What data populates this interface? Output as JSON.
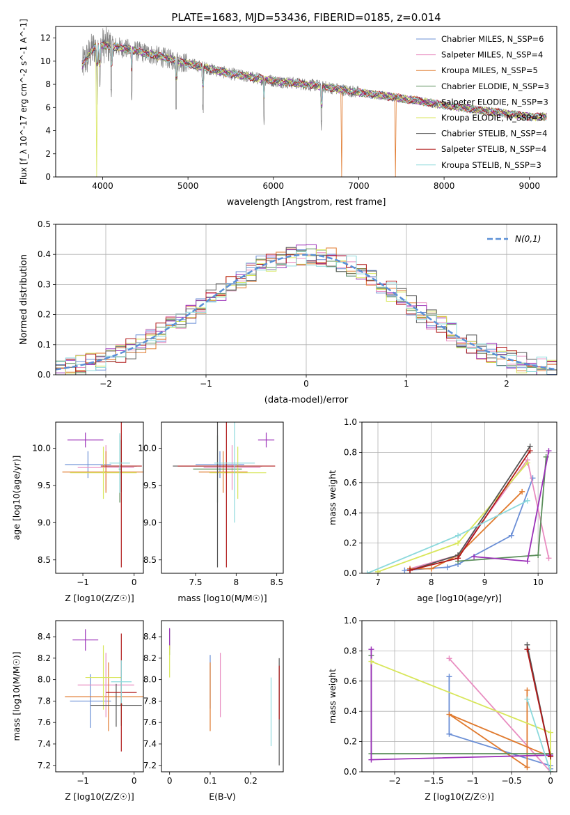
{
  "title": "PLATE=1683, MJD=53436, FIBERID=0185, z=0.014",
  "colors": [
    "#6b8fd6",
    "#e88cc0",
    "#e07a2e",
    "#5b8f5b",
    "#9b30b8",
    "#d8e65a",
    "#555555",
    "#b01818",
    "#8cd9dc"
  ],
  "chart_data": [
    {
      "id": "spectrum",
      "type": "line",
      "xlabel": "wavelength [Angstrom, rest frame]",
      "ylabel": "Flux [f_λ 10^-17 erg cm^-2 s^-1 A^-1]",
      "xlim": [
        3450,
        9320
      ],
      "ylim": [
        0,
        13
      ],
      "xticks": [
        4000,
        5000,
        6000,
        7000,
        8000,
        9000
      ],
      "yticks": [
        0,
        2,
        4,
        6,
        8,
        10,
        12
      ],
      "data_color": "#808080",
      "continuum": [
        [
          3760,
          9.6
        ],
        [
          3900,
          11.2
        ],
        [
          4000,
          11.4
        ],
        [
          4200,
          11.2
        ],
        [
          4500,
          10.7
        ],
        [
          5000,
          9.8
        ],
        [
          5500,
          8.9
        ],
        [
          6000,
          8.3
        ],
        [
          6500,
          7.9
        ],
        [
          7000,
          7.3
        ],
        [
          7500,
          6.8
        ],
        [
          8000,
          6.2
        ],
        [
          8500,
          5.7
        ],
        [
          9000,
          5.2
        ]
      ],
      "legend": [
        {
          "label": "Chabrier MILES, N_SSP=6",
          "color": "#6b8fd6"
        },
        {
          "label": "Salpeter MILES, N_SSP=4",
          "color": "#e88cc0"
        },
        {
          "label": "Kroupa MILES, N_SSP=5",
          "color": "#e07a2e"
        },
        {
          "label": "Chabrier ELODIE, N_SSP=3",
          "color": "#5b8f5b"
        },
        {
          "label": "Salpeter ELODIE, N_SSP=3",
          "color": "#9b30b8"
        },
        {
          "label": "Kroupa ELODIE, N_SSP=3",
          "color": "#d8e65a"
        },
        {
          "label": "Chabrier STELIB, N_SSP=4",
          "color": "#555555"
        },
        {
          "label": "Salpeter STELIB, N_SSP=4",
          "color": "#b01818"
        },
        {
          "label": "Kroupa STELIB, N_SSP=3",
          "color": "#8cd9dc"
        }
      ]
    },
    {
      "id": "residuals",
      "type": "line",
      "xlabel": "(data-model)/error",
      "ylabel": "Normed distribution",
      "xlim": [
        -2.5,
        2.5
      ],
      "ylim": [
        0,
        0.5
      ],
      "xticks": [
        -2,
        -1,
        0,
        1,
        2
      ],
      "yticks": [
        0,
        0.1,
        0.2,
        0.3,
        0.4,
        0.5
      ],
      "bin_width": 0.1,
      "legend": [
        {
          "label": "N(0,1)",
          "color": "#5a8fd6"
        }
      ]
    },
    {
      "id": "age_vs_Z",
      "type": "scatter",
      "xlabel": "Z [log10(Z/Z☉)]",
      "ylabel": "age [log10(age/yr)]",
      "xlim": [
        -1.53,
        0.18
      ],
      "ylim": [
        8.32,
        10.35
      ],
      "xticks": [
        -1,
        0
      ],
      "yticks": [
        8.5,
        9.0,
        9.5,
        10.0
      ],
      "points": [
        {
          "x": -0.9,
          "y": 9.78,
          "xerr": 0.45,
          "yerr": 0.18,
          "color": "#6b8fd6"
        },
        {
          "x": -0.55,
          "y": 9.74,
          "xerr": 0.55,
          "yerr": 0.3,
          "color": "#e88cc0"
        },
        {
          "x": -0.55,
          "y": 9.68,
          "xerr": 0.85,
          "yerr": 0.28,
          "color": "#e07a2e"
        },
        {
          "x": -0.28,
          "y": 9.72,
          "xerr": 0.02,
          "yerr": 0.45,
          "color": "#5b8f5b"
        },
        {
          "x": -0.95,
          "y": 10.11,
          "xerr": 0.35,
          "yerr": 0.1,
          "color": "#9b30b8"
        },
        {
          "x": -0.6,
          "y": 9.67,
          "xerr": 0.65,
          "yerr": 0.35,
          "color": "#d8e65a"
        },
        {
          "x": -0.25,
          "y": 9.76,
          "xerr": 0.3,
          "yerr": 0.35,
          "color": "#555555"
        },
        {
          "x": -0.25,
          "y": 9.76,
          "xerr": 0.4,
          "yerr": 1.36,
          "color": "#b01818"
        },
        {
          "x": -0.28,
          "y": 9.8,
          "xerr": 0.2,
          "yerr": 0.4,
          "color": "#8cd9dc"
        }
      ]
    },
    {
      "id": "age_vs_mass",
      "type": "scatter",
      "xlabel": "mass [log10(M/M☉)]",
      "ylabel": "",
      "xlim": [
        7.08,
        8.58
      ],
      "ylim": [
        8.32,
        10.35
      ],
      "xticks": [
        7.5,
        8.0,
        8.5
      ],
      "yticks": [
        8.5,
        9.0,
        9.5,
        10.0
      ],
      "points": [
        {
          "x": 7.8,
          "y": 9.78,
          "xerr": 0.3,
          "yerr": 0.18,
          "color": "#6b8fd6"
        },
        {
          "x": 7.95,
          "y": 9.74,
          "xerr": 0.35,
          "yerr": 0.3,
          "color": "#e88cc0"
        },
        {
          "x": 7.84,
          "y": 9.68,
          "xerr": 0.3,
          "yerr": 0.28,
          "color": "#e07a2e"
        },
        {
          "x": 7.77,
          "y": 9.72,
          "xerr": 0.3,
          "yerr": 0.45,
          "color": "#5b8f5b"
        },
        {
          "x": 8.37,
          "y": 10.11,
          "xerr": 0.1,
          "yerr": 0.1,
          "color": "#9b30b8"
        },
        {
          "x": 8.02,
          "y": 9.67,
          "xerr": 0.35,
          "yerr": 0.35,
          "color": "#d8e65a"
        },
        {
          "x": 7.77,
          "y": 9.76,
          "xerr": 0.55,
          "yerr": 1.36,
          "color": "#555555"
        },
        {
          "x": 7.88,
          "y": 9.76,
          "xerr": 0.6,
          "yerr": 1.36,
          "color": "#b01818"
        },
        {
          "x": 7.98,
          "y": 9.8,
          "xerr": 0.25,
          "yerr": 0.8,
          "color": "#8cd9dc"
        }
      ]
    },
    {
      "id": "mass_weight_vs_age",
      "type": "line",
      "xlabel": "age [log10(age/yr)]",
      "ylabel": "mass weight",
      "xlim": [
        6.7,
        10.35
      ],
      "ylim": [
        0,
        1.0
      ],
      "xticks": [
        7,
        8,
        9,
        10
      ],
      "yticks": [
        0,
        0.2,
        0.4,
        0.6,
        0.8,
        1.0
      ],
      "series": [
        {
          "color": "#6b8fd6",
          "x": [
            7.5,
            8.3,
            8.5,
            9.5,
            9.9
          ],
          "y": [
            0.02,
            0.04,
            0.06,
            0.25,
            0.63
          ]
        },
        {
          "color": "#e88cc0",
          "x": [
            7.6,
            8.5,
            9.8,
            10.2
          ],
          "y": [
            0.03,
            0.12,
            0.75,
            0.1
          ]
        },
        {
          "color": "#e07a2e",
          "x": [
            7.6,
            8.0,
            8.5,
            9.7
          ],
          "y": [
            0.03,
            0.03,
            0.12,
            0.54
          ]
        },
        {
          "color": "#5b8f5b",
          "x": [
            8.5,
            10.0,
            10.15
          ],
          "y": [
            0.08,
            0.12,
            0.77
          ]
        },
        {
          "color": "#9b30b8",
          "x": [
            8.8,
            9.8,
            10.2
          ],
          "y": [
            0.11,
            0.08,
            0.81
          ]
        },
        {
          "color": "#d8e65a",
          "x": [
            7.0,
            8.5,
            9.8
          ],
          "y": [
            0.01,
            0.2,
            0.73
          ]
        },
        {
          "color": "#555555",
          "x": [
            7.6,
            8.5,
            9.85
          ],
          "y": [
            0.02,
            0.12,
            0.84
          ]
        },
        {
          "color": "#b01818",
          "x": [
            7.6,
            8.5,
            9.85
          ],
          "y": [
            0.02,
            0.1,
            0.81
          ]
        },
        {
          "color": "#8cd9dc",
          "x": [
            6.8,
            8.5,
            9.8
          ],
          "y": [
            0.0,
            0.25,
            0.48
          ]
        }
      ]
    },
    {
      "id": "mass_vs_Z",
      "type": "scatter",
      "xlabel": "Z [log10(Z/Z☉)]",
      "ylabel": "mass [log10(M/M☉)]",
      "xlim": [
        -1.53,
        0.18
      ],
      "ylim": [
        7.14,
        8.55
      ],
      "xticks": [
        -1,
        0
      ],
      "yticks": [
        7.2,
        7.4,
        7.6,
        7.8,
        8.0,
        8.2,
        8.4
      ],
      "points": [
        {
          "x": -0.85,
          "y": 7.8,
          "xerr": 0.4,
          "yerr": 0.25,
          "color": "#6b8fd6"
        },
        {
          "x": -0.55,
          "y": 7.95,
          "xerr": 0.55,
          "yerr": 0.3,
          "color": "#e88cc0"
        },
        {
          "x": -0.5,
          "y": 7.84,
          "xerr": 0.85,
          "yerr": 0.32,
          "color": "#e07a2e"
        },
        {
          "x": -0.25,
          "y": 7.77,
          "xerr": 0.02,
          "yerr": 0.2,
          "color": "#5b8f5b"
        },
        {
          "x": -0.95,
          "y": 8.37,
          "xerr": 0.25,
          "yerr": 0.1,
          "color": "#9b30b8"
        },
        {
          "x": -0.6,
          "y": 8.02,
          "xerr": 0.35,
          "yerr": 0.3,
          "color": "#d8e65a"
        },
        {
          "x": -0.35,
          "y": 7.76,
          "xerr": 0.5,
          "yerr": 0.2,
          "color": "#555555"
        },
        {
          "x": -0.25,
          "y": 7.88,
          "xerr": 0.3,
          "yerr": 0.55,
          "color": "#b01818"
        },
        {
          "x": -0.25,
          "y": 7.98,
          "xerr": 0.2,
          "yerr": 0.2,
          "color": "#8cd9dc"
        }
      ]
    },
    {
      "id": "mass_vs_EBV",
      "type": "scatter",
      "xlabel": "E(B-V)",
      "ylabel": "",
      "xlim": [
        -0.02,
        0.28
      ],
      "ylim": [
        7.14,
        8.55
      ],
      "xticks": [
        0.0,
        0.1,
        0.2
      ],
      "yticks": [
        7.2,
        7.4,
        7.6,
        7.8,
        8.0,
        8.2,
        8.4
      ],
      "points": [
        {
          "x": 0.1,
          "y": 7.98,
          "xerr": 0,
          "yerr": 0.25,
          "color": "#6b8fd6"
        },
        {
          "x": 0.125,
          "y": 7.95,
          "xerr": 0,
          "yerr": 0.3,
          "color": "#e88cc0"
        },
        {
          "x": 0.1,
          "y": 7.84,
          "xerr": 0,
          "yerr": 0.32,
          "color": "#e07a2e"
        },
        {
          "x": 0.0,
          "y": 8.35,
          "xerr": 0,
          "yerr": 0.12,
          "color": "#5b8f5b"
        },
        {
          "x": 0.0,
          "y": 8.38,
          "xerr": 0,
          "yerr": 0.1,
          "color": "#9b30b8"
        },
        {
          "x": 0.0,
          "y": 8.17,
          "xerr": 0,
          "yerr": 0.15,
          "color": "#d8e65a"
        },
        {
          "x": 0.27,
          "y": 7.7,
          "xerr": 0,
          "yerr": 0.5,
          "color": "#555555"
        },
        {
          "x": 0.27,
          "y": 7.88,
          "xerr": 0,
          "yerr": 0.25,
          "color": "#b01818"
        },
        {
          "x": 0.25,
          "y": 7.7,
          "xerr": 0,
          "yerr": 0.32,
          "color": "#8cd9dc"
        }
      ]
    },
    {
      "id": "mass_weight_vs_Z",
      "type": "line",
      "xlabel": "Z [log10(Z/Z☉)]",
      "ylabel": "mass weight",
      "xlim": [
        -2.42,
        0.08
      ],
      "ylim": [
        0,
        1.0
      ],
      "xticks": [
        -2.0,
        -1.5,
        -1.0,
        -0.5,
        0.0
      ],
      "yticks": [
        0,
        0.2,
        0.4,
        0.6,
        0.8,
        1.0
      ],
      "series": [
        {
          "color": "#6b8fd6",
          "x": [
            -1.3,
            -1.3,
            0.0,
            0.0
          ],
          "y": [
            0.63,
            0.25,
            0.04,
            0.02
          ]
        },
        {
          "color": "#e88cc0",
          "x": [
            -1.3,
            0.0
          ],
          "y": [
            0.75,
            0.0
          ]
        },
        {
          "color": "#e07a2e",
          "x": [
            -0.3,
            -0.3,
            -1.3,
            0.0
          ],
          "y": [
            0.54,
            0.03,
            0.38,
            0.1
          ]
        },
        {
          "color": "#5b8f5b",
          "x": [
            -2.3,
            -2.3,
            -0.0
          ],
          "y": [
            0.77,
            0.12,
            0.12
          ]
        },
        {
          "color": "#9b30b8",
          "x": [
            -2.3,
            -2.3,
            0.0
          ],
          "y": [
            0.81,
            0.08,
            0.11
          ]
        },
        {
          "color": "#d8e65a",
          "x": [
            -2.3,
            0.0,
            0.0
          ],
          "y": [
            0.73,
            0.26,
            0.0
          ]
        },
        {
          "color": "#555555",
          "x": [
            -0.3,
            0.0
          ],
          "y": [
            0.84,
            0.1
          ]
        },
        {
          "color": "#b01818",
          "x": [
            -0.3,
            0.0
          ],
          "y": [
            0.81,
            0.1
          ]
        },
        {
          "color": "#8cd9dc",
          "x": [
            -0.3,
            0.0
          ],
          "y": [
            0.48,
            0.0
          ]
        }
      ]
    }
  ]
}
